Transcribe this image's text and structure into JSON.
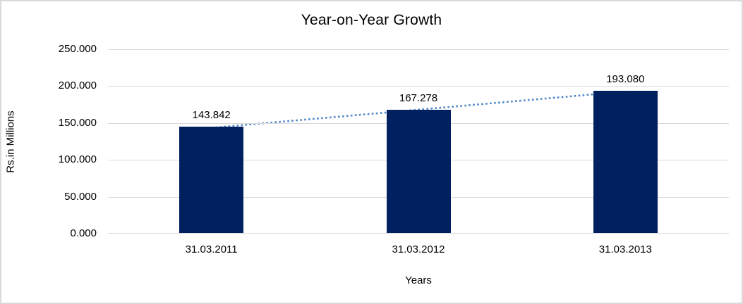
{
  "chart_data": {
    "type": "bar",
    "title": "Year-on-Year Growth",
    "xlabel": "Years",
    "ylabel": "Rs.in Millions",
    "categories": [
      "31.03.2011",
      "31.03.2012",
      "31.03.2013"
    ],
    "values": [
      143.842,
      167.278,
      193.08
    ],
    "value_labels": [
      "143.842",
      "167.278",
      "193.080"
    ],
    "y_ticks": [
      {
        "value": 250,
        "label": "250.000"
      },
      {
        "value": 200,
        "label": "200.000"
      },
      {
        "value": 150,
        "label": "150.000"
      },
      {
        "value": 100,
        "label": "100.000"
      },
      {
        "value": 50,
        "label": "50.000"
      },
      {
        "value": 0,
        "label": "0.000"
      }
    ],
    "ylim": [
      0,
      250
    ],
    "grid": "horizontal",
    "legend": "none",
    "trendline": {
      "type": "linear",
      "style": "dotted"
    },
    "colors": {
      "bar": "#002060",
      "trendline": "#4e86c8",
      "gridline": "#d9d9d9",
      "text": "#000000",
      "frame_border": "#d9d9d9",
      "background": "#ffffff"
    }
  }
}
